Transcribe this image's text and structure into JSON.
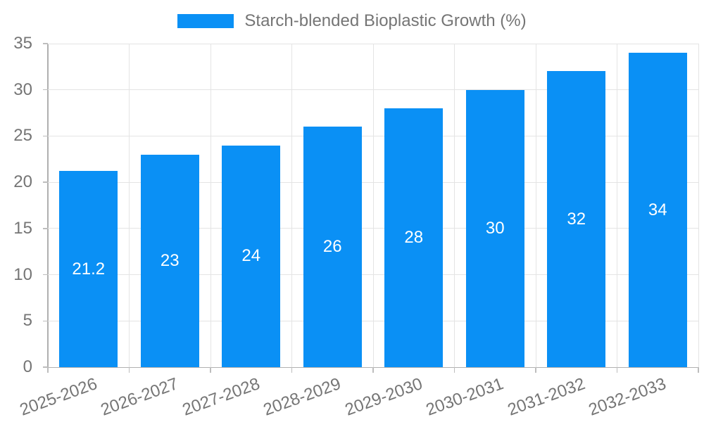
{
  "chart_data": {
    "type": "bar",
    "title": "",
    "legend_position": "top-center",
    "categories": [
      "2025-2026",
      "2026-2027",
      "2027-2028",
      "2028-2029",
      "2029-2030",
      "2030-2031",
      "2031-2032",
      "2032-2033"
    ],
    "series": [
      {
        "name": "Starch-blended Bioplastic Growth (%)",
        "values": [
          21.2,
          23,
          24,
          26,
          28,
          30,
          32,
          34
        ]
      }
    ],
    "bar_value_labels": [
      "21.2",
      "23",
      "24",
      "26",
      "28",
      "30",
      "32",
      "34"
    ],
    "y_ticks": [
      0,
      5,
      10,
      15,
      20,
      25,
      30,
      35
    ],
    "y_tick_labels": [
      "0",
      "5",
      "10",
      "15",
      "20",
      "25",
      "30",
      "35"
    ],
    "ylim": [
      0,
      35
    ],
    "grid": true,
    "xlabel": "",
    "ylabel": "",
    "colors": {
      "bar": "#0a90f5",
      "bar_label": "#ffffff",
      "axis_text": "#757575",
      "grid_line": "#e4e4e4",
      "axis_line": "#b0b0b0",
      "tick_mark": "#bdbdbd",
      "background": "#ffffff"
    }
  }
}
